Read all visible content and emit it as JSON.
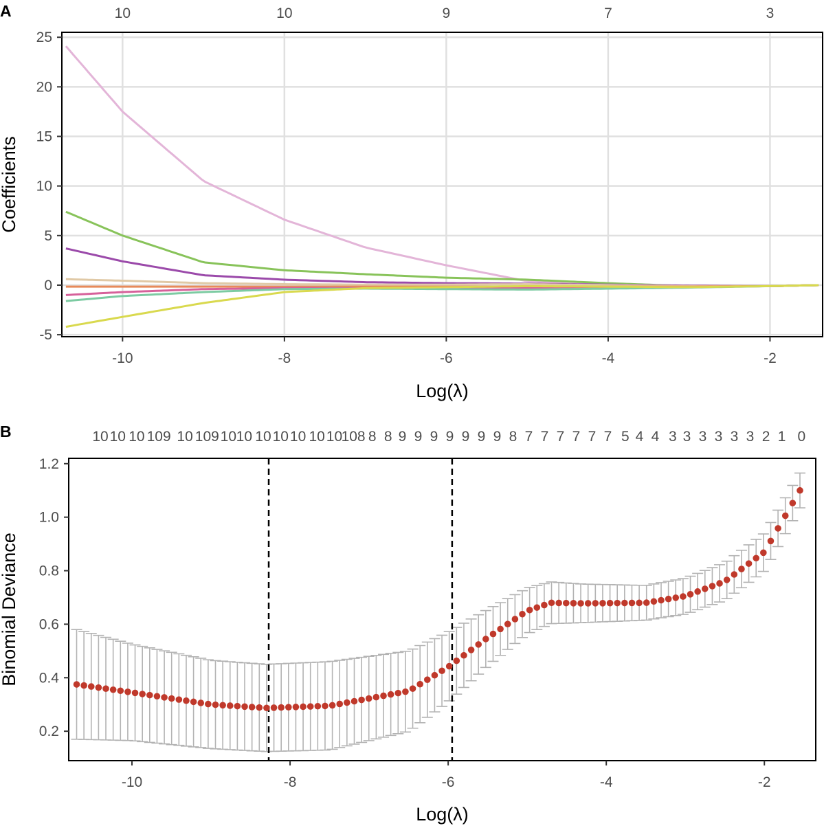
{
  "chart_data": [
    {
      "panel_label": "A",
      "type": "line",
      "title": "",
      "xlabel": "Log(λ)",
      "ylabel": "Coefficients",
      "xlim": [
        -10.75,
        -1.35
      ],
      "ylim": [
        -5.2,
        25.5
      ],
      "grid": true,
      "xticks": [
        -10,
        -8,
        -6,
        -4,
        -2
      ],
      "xtick_labels": [
        "-10",
        "-8",
        "-6",
        "-4",
        "-2"
      ],
      "yticks": [
        -5,
        0,
        5,
        10,
        15,
        20,
        25
      ],
      "ytick_labels": [
        "-5",
        "0",
        "5",
        "10",
        "15",
        "20",
        "25"
      ],
      "top_axis": {
        "positions": [
          -10,
          -8,
          -6,
          -4,
          -2
        ],
        "labels": [
          "10",
          "10",
          "9",
          "7",
          "3"
        ]
      },
      "x": [
        -10.7,
        -10.0,
        -9.0,
        -8.0,
        -7.0,
        -6.0,
        -5.0,
        -4.0,
        -3.0,
        -2.0,
        -1.4
      ],
      "series": [
        {
          "name": "coef1",
          "color": "#e3b5d8",
          "values": [
            24.1,
            17.5,
            10.5,
            6.6,
            3.8,
            2.0,
            0.4,
            0.0,
            -0.1,
            -0.1,
            0.0
          ]
        },
        {
          "name": "coef2",
          "color": "#88c35a",
          "values": [
            7.4,
            5.0,
            2.3,
            1.5,
            1.1,
            0.75,
            0.55,
            0.2,
            -0.1,
            -0.1,
            0.0
          ]
        },
        {
          "name": "coef3",
          "color": "#9b4aaa",
          "values": [
            3.7,
            2.4,
            1.0,
            0.55,
            0.3,
            0.2,
            0.15,
            0.05,
            -0.05,
            -0.1,
            0.0
          ]
        },
        {
          "name": "coef4",
          "color": "#e0c9a6",
          "values": [
            0.6,
            0.45,
            0.2,
            0.1,
            0.05,
            0.05,
            0.1,
            0.0,
            -0.1,
            -0.1,
            0.0
          ]
        },
        {
          "name": "coef5",
          "color": "#e88a5a",
          "values": [
            -0.15,
            -0.15,
            -0.15,
            -0.15,
            -0.15,
            -0.15,
            -0.15,
            -0.15,
            -0.15,
            -0.1,
            0.0
          ]
        },
        {
          "name": "coef6",
          "color": "#d6619a",
          "values": [
            -1.0,
            -0.7,
            -0.4,
            -0.3,
            -0.3,
            -0.3,
            -0.3,
            -0.25,
            -0.2,
            -0.1,
            0.0
          ]
        },
        {
          "name": "coef7",
          "color": "#7ccba2",
          "values": [
            -1.6,
            -1.1,
            -0.7,
            -0.4,
            -0.35,
            -0.4,
            -0.45,
            -0.35,
            -0.25,
            -0.1,
            0.0
          ]
        },
        {
          "name": "coef8",
          "color": "#d9d94e",
          "values": [
            -4.2,
            -3.2,
            -1.8,
            -0.7,
            -0.3,
            -0.2,
            -0.1,
            -0.15,
            -0.2,
            -0.1,
            0.0
          ]
        }
      ]
    },
    {
      "panel_label": "B",
      "type": "scatter",
      "title": "",
      "xlabel": "Log(λ)",
      "ylabel": "Binomial Deviance",
      "xlim": [
        -10.8,
        -1.35
      ],
      "ylim": [
        0.09,
        1.22
      ],
      "grid": false,
      "xticks": [
        -10,
        -8,
        -6,
        -4,
        -2
      ],
      "xtick_labels": [
        "-10",
        "-8",
        "-6",
        "-4",
        "-2"
      ],
      "yticks": [
        0.2,
        0.4,
        0.6,
        0.8,
        1.0,
        1.2
      ],
      "ytick_labels": [
        "0.2",
        "0.4",
        "0.6",
        "0.8",
        "1.0",
        "1.2"
      ],
      "point_color": "#c0392b",
      "errorbar_color": "#b3b3b3",
      "x_start": -10.7,
      "x_end": -1.55,
      "n_points": 100,
      "curve_knots": {
        "x": [
          -10.7,
          -10.0,
          -9.0,
          -8.3,
          -7.5,
          -6.5,
          -6.0,
          -5.5,
          -5.0,
          -4.7,
          -4.3,
          -3.5,
          -3.0,
          -2.5,
          -2.0,
          -1.55
        ],
        "mean": [
          0.375,
          0.345,
          0.3,
          0.287,
          0.295,
          0.35,
          0.44,
          0.55,
          0.65,
          0.68,
          0.678,
          0.68,
          0.705,
          0.76,
          0.87,
          1.1
        ],
        "se": [
          0.205,
          0.18,
          0.165,
          0.163,
          0.165,
          0.15,
          0.13,
          0.105,
          0.085,
          0.078,
          0.072,
          0.065,
          0.067,
          0.07,
          0.07,
          0.065
        ]
      },
      "vlines": [
        -8.27,
        -5.95
      ],
      "top_axis": {
        "labels": [
          "10",
          "10",
          "10",
          "109",
          "10",
          "109",
          "10",
          "10",
          "10",
          "10",
          "10",
          "10",
          "10",
          "108",
          "8",
          "8",
          "9",
          "9",
          "9",
          "9",
          "9",
          "9",
          "9",
          "8",
          "7",
          "7",
          "7",
          "7",
          "7",
          "7",
          "5",
          "4",
          "4",
          "3",
          "3",
          "3",
          "3",
          "3",
          "3",
          "2",
          "1",
          "0"
        ],
        "positions": [
          -10.4,
          -10.18,
          -9.94,
          -9.66,
          -9.33,
          -9.05,
          -8.78,
          -8.58,
          -8.34,
          -8.12,
          -7.9,
          -7.66,
          -7.44,
          -7.2,
          -6.96,
          -6.76,
          -6.58,
          -6.38,
          -6.18,
          -5.98,
          -5.78,
          -5.58,
          -5.38,
          -5.18,
          -4.98,
          -4.78,
          -4.58,
          -4.38,
          -4.18,
          -3.98,
          -3.76,
          -3.58,
          -3.38,
          -3.16,
          -2.98,
          -2.78,
          -2.58,
          -2.38,
          -2.18,
          -1.98,
          -1.78,
          -1.53
        ]
      }
    }
  ]
}
